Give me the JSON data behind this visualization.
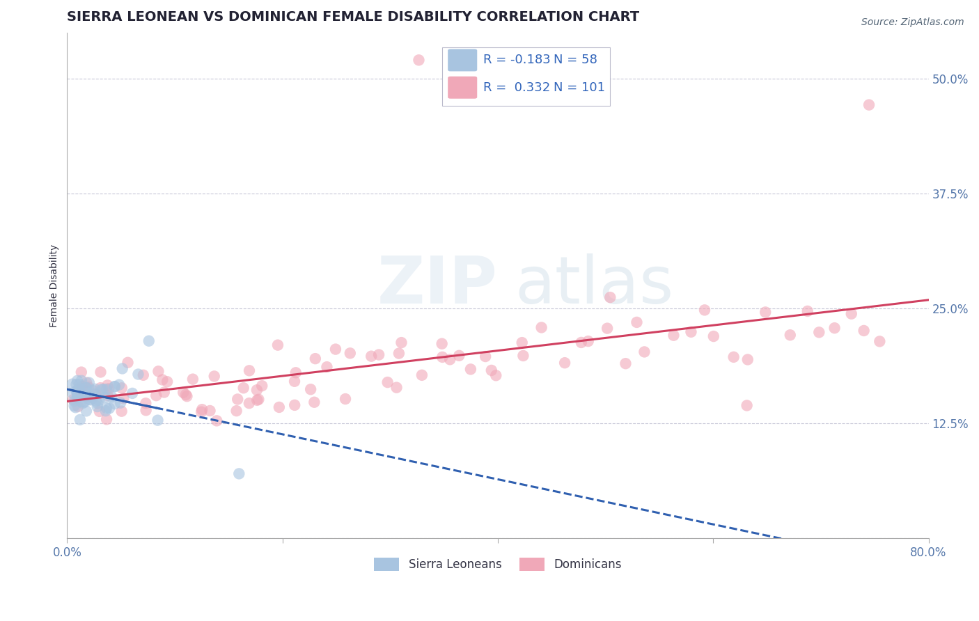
{
  "title": "SIERRA LEONEAN VS DOMINICAN FEMALE DISABILITY CORRELATION CHART",
  "source": "Source: ZipAtlas.com",
  "ylabel": "Female Disability",
  "xlim": [
    0.0,
    0.8
  ],
  "ylim": [
    0.0,
    0.55
  ],
  "xticks": [
    0.0,
    0.2,
    0.4,
    0.6,
    0.8
  ],
  "xticklabels": [
    "0.0%",
    "",
    "",
    "",
    "80.0%"
  ],
  "yticks": [
    0.0,
    0.125,
    0.25,
    0.375,
    0.5
  ],
  "yticklabels": [
    "",
    "12.5%",
    "25.0%",
    "37.5%",
    "50.0%"
  ],
  "sierra_color": "#a8c4e0",
  "dominican_color": "#f0a8b8",
  "sierra_line_color": "#3060b0",
  "dominican_line_color": "#d04060",
  "background_color": "#ffffff",
  "grid_color": "#c8c8d8",
  "legend_R_sl": "-0.183",
  "legend_N_sl": "58",
  "legend_R_dom": "0.332",
  "legend_N_dom": "101",
  "title_fontsize": 14,
  "axis_label_fontsize": 10,
  "tick_fontsize": 12,
  "sierra_seed": 42,
  "dominican_seed": 7,
  "sierra_n": 58,
  "dominican_n": 101,
  "sl_x_points": [
    0.005,
    0.005,
    0.006,
    0.007,
    0.007,
    0.008,
    0.008,
    0.009,
    0.009,
    0.01,
    0.01,
    0.01,
    0.011,
    0.011,
    0.012,
    0.012,
    0.013,
    0.013,
    0.014,
    0.014,
    0.015,
    0.015,
    0.016,
    0.017,
    0.018,
    0.018,
    0.019,
    0.02,
    0.021,
    0.022,
    0.022,
    0.023,
    0.024,
    0.025,
    0.026,
    0.027,
    0.028,
    0.03,
    0.031,
    0.032,
    0.033,
    0.035,
    0.036,
    0.037,
    0.038,
    0.04,
    0.042,
    0.043,
    0.044,
    0.046,
    0.048,
    0.05,
    0.052,
    0.06,
    0.065,
    0.075,
    0.085,
    0.16
  ],
  "sl_y_points": [
    0.155,
    0.16,
    0.148,
    0.162,
    0.158,
    0.152,
    0.165,
    0.145,
    0.168,
    0.15,
    0.153,
    0.158,
    0.16,
    0.147,
    0.162,
    0.155,
    0.15,
    0.165,
    0.148,
    0.16,
    0.155,
    0.163,
    0.15,
    0.158,
    0.152,
    0.168,
    0.145,
    0.155,
    0.162,
    0.148,
    0.158,
    0.153,
    0.16,
    0.145,
    0.155,
    0.165,
    0.15,
    0.155,
    0.148,
    0.16,
    0.162,
    0.155,
    0.15,
    0.145,
    0.165,
    0.148,
    0.155,
    0.162,
    0.15,
    0.145,
    0.165,
    0.148,
    0.2,
    0.158,
    0.178,
    0.195,
    0.13,
    0.068
  ],
  "dom_x_points": [
    0.005,
    0.008,
    0.01,
    0.012,
    0.015,
    0.018,
    0.02,
    0.022,
    0.025,
    0.028,
    0.03,
    0.032,
    0.035,
    0.038,
    0.04,
    0.045,
    0.048,
    0.05,
    0.055,
    0.06,
    0.065,
    0.07,
    0.075,
    0.08,
    0.085,
    0.09,
    0.095,
    0.1,
    0.105,
    0.11,
    0.115,
    0.12,
    0.125,
    0.13,
    0.135,
    0.14,
    0.145,
    0.15,
    0.155,
    0.16,
    0.165,
    0.17,
    0.175,
    0.18,
    0.185,
    0.19,
    0.195,
    0.2,
    0.21,
    0.215,
    0.22,
    0.225,
    0.23,
    0.24,
    0.25,
    0.26,
    0.27,
    0.28,
    0.29,
    0.3,
    0.31,
    0.32,
    0.33,
    0.34,
    0.35,
    0.36,
    0.37,
    0.38,
    0.39,
    0.4,
    0.415,
    0.425,
    0.44,
    0.455,
    0.47,
    0.485,
    0.5,
    0.515,
    0.53,
    0.545,
    0.56,
    0.575,
    0.59,
    0.605,
    0.62,
    0.635,
    0.65,
    0.665,
    0.68,
    0.695,
    0.71,
    0.725,
    0.74,
    0.755,
    0.33,
    0.745,
    0.62,
    0.5,
    0.4,
    0.3,
    0.2
  ],
  "dom_y_points": [
    0.15,
    0.145,
    0.165,
    0.158,
    0.17,
    0.148,
    0.162,
    0.155,
    0.145,
    0.168,
    0.152,
    0.165,
    0.158,
    0.148,
    0.16,
    0.155,
    0.17,
    0.148,
    0.165,
    0.158,
    0.152,
    0.168,
    0.145,
    0.16,
    0.17,
    0.148,
    0.165,
    0.158,
    0.152,
    0.168,
    0.16,
    0.148,
    0.17,
    0.155,
    0.165,
    0.175,
    0.148,
    0.168,
    0.158,
    0.162,
    0.175,
    0.155,
    0.168,
    0.18,
    0.158,
    0.17,
    0.155,
    0.175,
    0.168,
    0.18,
    0.175,
    0.165,
    0.185,
    0.17,
    0.18,
    0.175,
    0.19,
    0.18,
    0.185,
    0.178,
    0.195,
    0.185,
    0.2,
    0.19,
    0.195,
    0.205,
    0.19,
    0.2,
    0.21,
    0.195,
    0.21,
    0.2,
    0.215,
    0.205,
    0.215,
    0.2,
    0.22,
    0.21,
    0.225,
    0.21,
    0.215,
    0.22,
    0.23,
    0.218,
    0.225,
    0.215,
    0.235,
    0.225,
    0.23,
    0.22,
    0.24,
    0.228,
    0.238,
    0.245,
    0.5,
    0.5,
    0.135,
    0.248,
    0.175,
    0.195,
    0.195
  ]
}
